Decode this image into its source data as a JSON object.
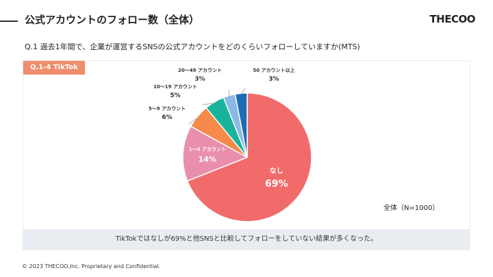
{
  "header": {
    "title": "公式アカウントのフォロー数（全体）",
    "brand": "THECOO"
  },
  "question": "Q.1 過去1年間で、企業が運営するSNSの公式アカウントをどのくらいフォローしていますか(MTS)",
  "panel": {
    "tag": "Q.1-4 TikTok",
    "sample_note": "全体（N=1000）",
    "summary": "TikTokではなしが69%と他SNSと比較してフォローをしていない結果が多くなった。"
  },
  "chart_data": {
    "type": "pie",
    "series": [
      {
        "label": "なし",
        "value": 69,
        "value_label": "69%",
        "color": "#f26b6b"
      },
      {
        "label": "1～4 アカウント",
        "value": 14,
        "value_label": "14%",
        "color": "#e98fad"
      },
      {
        "label": "5～9 アカウント",
        "value": 6,
        "value_label": "6%",
        "color": "#f7894a"
      },
      {
        "label": "10～19 アカウント",
        "value": 5,
        "value_label": "5%",
        "color": "#19b39c"
      },
      {
        "label": "20～49 アカウント",
        "value": 3,
        "value_label": "3%",
        "color": "#8cb8e6"
      },
      {
        "label": "50 アカウント以上",
        "value": 3,
        "value_label": "3%",
        "color": "#1f6bb3"
      }
    ]
  },
  "footer": "© 2023 THECOO,Inc. Proprietary and Confidential."
}
